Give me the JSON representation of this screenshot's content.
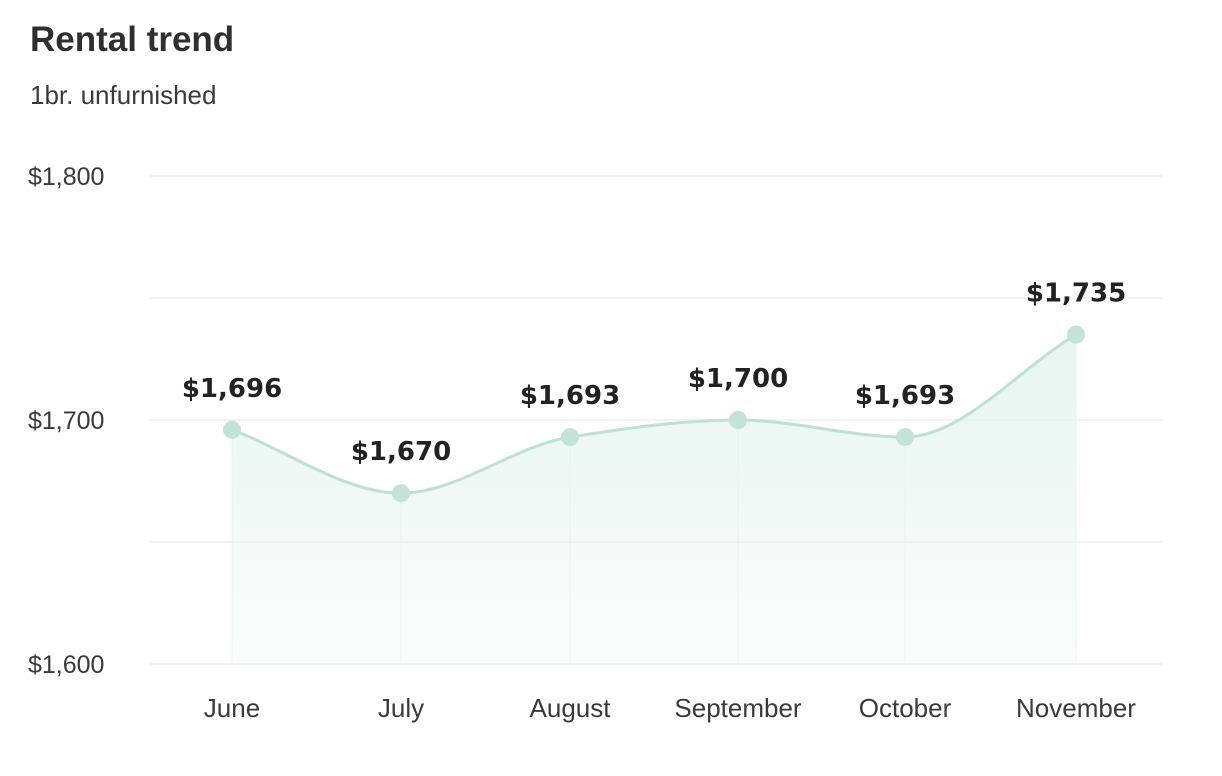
{
  "header": {
    "title": "Rental trend",
    "subtitle": "1br. unfurnished"
  },
  "colors": {
    "line": "#bfe0d5",
    "point": "#c3e2d8",
    "area_top": "#e3f3ee",
    "grid": "#ececec",
    "text": "#333333"
  },
  "chart_data": {
    "type": "area",
    "title": "Rental trend",
    "subtitle": "1br. unfurnished",
    "categories": [
      "June",
      "July",
      "August",
      "September",
      "October",
      "November"
    ],
    "values": [
      1696,
      1670,
      1693,
      1700,
      1693,
      1735
    ],
    "value_labels": [
      "$1,696",
      "$1,670",
      "$1,693",
      "$1,700",
      "$1,693",
      "$1,735"
    ],
    "ylim": [
      1600,
      1800
    ],
    "yticks": [
      1600,
      1700,
      1800
    ],
    "ytick_labels": [
      "$1,600",
      "$1,700",
      "$1,800"
    ],
    "gridlines": [
      1600,
      1650,
      1700,
      1750,
      1800
    ],
    "grid": true,
    "smooth": true,
    "legend": "none",
    "xlabel": "",
    "ylabel": ""
  }
}
